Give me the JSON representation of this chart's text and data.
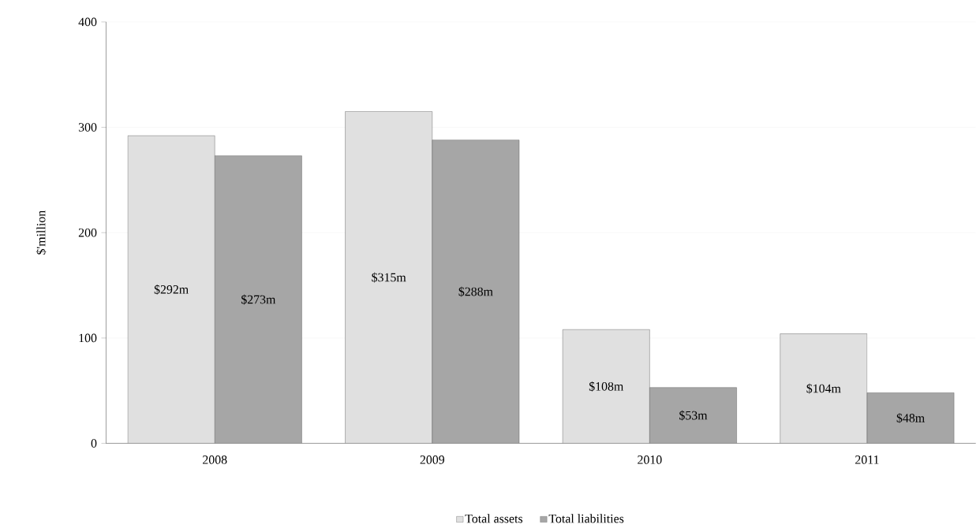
{
  "chart_data": {
    "type": "bar",
    "ylabel": "$'million",
    "categories": [
      "2008",
      "2009",
      "2010",
      "2011"
    ],
    "series": [
      {
        "name": "Total assets",
        "color": "#e0e0e0",
        "values": [
          292,
          315,
          108,
          104
        ],
        "value_labels": [
          "$292m",
          "$315m",
          "$108m",
          "$104m"
        ]
      },
      {
        "name": "Total liabilities",
        "color": "#a6a6a6",
        "values": [
          273,
          288,
          53,
          48
        ],
        "value_labels": [
          "$273m",
          "$288m",
          "$53m",
          "$48m"
        ]
      }
    ],
    "ylim": [
      0,
      400
    ],
    "yticks": [
      0,
      100,
      200,
      300,
      400
    ],
    "grid": "y",
    "legend": "bottom"
  }
}
